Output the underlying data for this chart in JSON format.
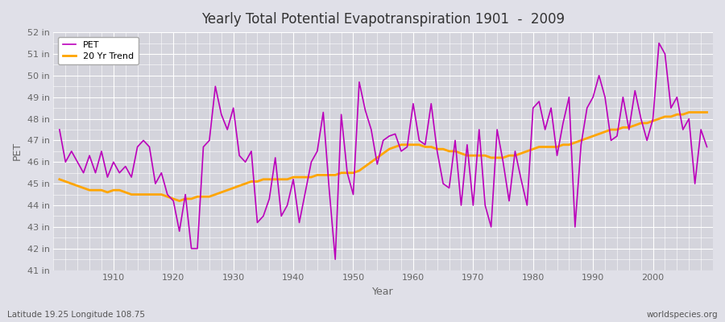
{
  "title": "Yearly Total Potential Evapotranspiration 1901  -  2009",
  "xlabel": "Year",
  "ylabel": "PET",
  "subtitle": "Latitude 19.25 Longitude 108.75",
  "watermark": "worldspecies.org",
  "pet_label": "PET",
  "trend_label": "20 Yr Trend",
  "pet_color": "#BB00BB",
  "trend_color": "#FFA500",
  "bg_color": "#E0E0E8",
  "plot_bg_color": "#D4D4DC",
  "ylim": [
    41,
    52
  ],
  "ytick_step": 1,
  "years": [
    1901,
    1902,
    1903,
    1904,
    1905,
    1906,
    1907,
    1908,
    1909,
    1910,
    1911,
    1912,
    1913,
    1914,
    1915,
    1916,
    1917,
    1918,
    1919,
    1920,
    1921,
    1922,
    1923,
    1924,
    1925,
    1926,
    1927,
    1928,
    1929,
    1930,
    1931,
    1932,
    1933,
    1934,
    1935,
    1936,
    1937,
    1938,
    1939,
    1940,
    1941,
    1942,
    1943,
    1944,
    1945,
    1946,
    1947,
    1948,
    1949,
    1950,
    1951,
    1952,
    1953,
    1954,
    1955,
    1956,
    1957,
    1958,
    1959,
    1960,
    1961,
    1962,
    1963,
    1964,
    1965,
    1966,
    1967,
    1968,
    1969,
    1970,
    1971,
    1972,
    1973,
    1974,
    1975,
    1976,
    1977,
    1978,
    1979,
    1980,
    1981,
    1982,
    1983,
    1984,
    1985,
    1986,
    1987,
    1988,
    1989,
    1990,
    1991,
    1992,
    1993,
    1994,
    1995,
    1996,
    1997,
    1998,
    1999,
    2000,
    2001,
    2002,
    2003,
    2004,
    2005,
    2006,
    2007,
    2008,
    2009
  ],
  "pet_values": [
    47.5,
    46.0,
    46.5,
    46.0,
    45.5,
    46.3,
    45.5,
    46.5,
    45.3,
    46.0,
    45.5,
    45.8,
    45.3,
    46.7,
    47.0,
    46.7,
    45.0,
    45.5,
    44.5,
    44.2,
    42.8,
    44.5,
    42.0,
    42.0,
    46.7,
    47.0,
    49.5,
    48.2,
    47.5,
    48.5,
    46.3,
    46.0,
    46.5,
    43.2,
    43.5,
    44.3,
    46.2,
    43.5,
    44.0,
    45.2,
    43.2,
    44.6,
    46.0,
    46.5,
    48.3,
    44.7,
    41.5,
    48.2,
    45.5,
    44.5,
    49.7,
    48.4,
    47.5,
    45.9,
    47.0,
    47.2,
    47.3,
    46.5,
    46.7,
    48.7,
    47.0,
    46.8,
    48.7,
    46.5,
    45.0,
    44.8,
    47.0,
    44.0,
    46.8,
    44.0,
    47.5,
    44.0,
    43.0,
    47.5,
    46.0,
    44.2,
    46.5,
    45.2,
    44.0,
    48.5,
    48.8,
    47.5,
    48.5,
    46.3,
    47.8,
    49.0,
    43.0,
    46.8,
    48.5,
    49.0,
    50.0,
    49.0,
    47.0,
    47.2,
    49.0,
    47.5,
    49.3,
    48.0,
    47.0,
    48.0,
    51.5,
    51.0,
    48.5,
    49.0,
    47.5,
    48.0,
    45.0,
    47.5,
    46.7
  ],
  "trend_values": [
    45.2,
    45.1,
    45.0,
    44.9,
    44.8,
    44.7,
    44.7,
    44.7,
    44.6,
    44.7,
    44.7,
    44.6,
    44.5,
    44.5,
    44.5,
    44.5,
    44.5,
    44.5,
    44.4,
    44.3,
    44.2,
    44.3,
    44.3,
    44.4,
    44.4,
    44.4,
    44.5,
    44.6,
    44.7,
    44.8,
    44.9,
    45.0,
    45.1,
    45.1,
    45.2,
    45.2,
    45.2,
    45.2,
    45.2,
    45.3,
    45.3,
    45.3,
    45.3,
    45.4,
    45.4,
    45.4,
    45.4,
    45.5,
    45.5,
    45.5,
    45.6,
    45.8,
    46.0,
    46.2,
    46.4,
    46.6,
    46.7,
    46.8,
    46.8,
    46.8,
    46.8,
    46.7,
    46.7,
    46.6,
    46.6,
    46.5,
    46.5,
    46.4,
    46.3,
    46.3,
    46.3,
    46.3,
    46.2,
    46.2,
    46.2,
    46.3,
    46.3,
    46.4,
    46.5,
    46.6,
    46.7,
    46.7,
    46.7,
    46.7,
    46.8,
    46.8,
    46.9,
    47.0,
    47.1,
    47.2,
    47.3,
    47.4,
    47.5,
    47.5,
    47.6,
    47.6,
    47.7,
    47.8,
    47.8,
    47.9,
    48.0,
    48.1,
    48.1,
    48.2,
    48.2,
    48.3,
    48.3,
    48.3,
    48.3
  ]
}
